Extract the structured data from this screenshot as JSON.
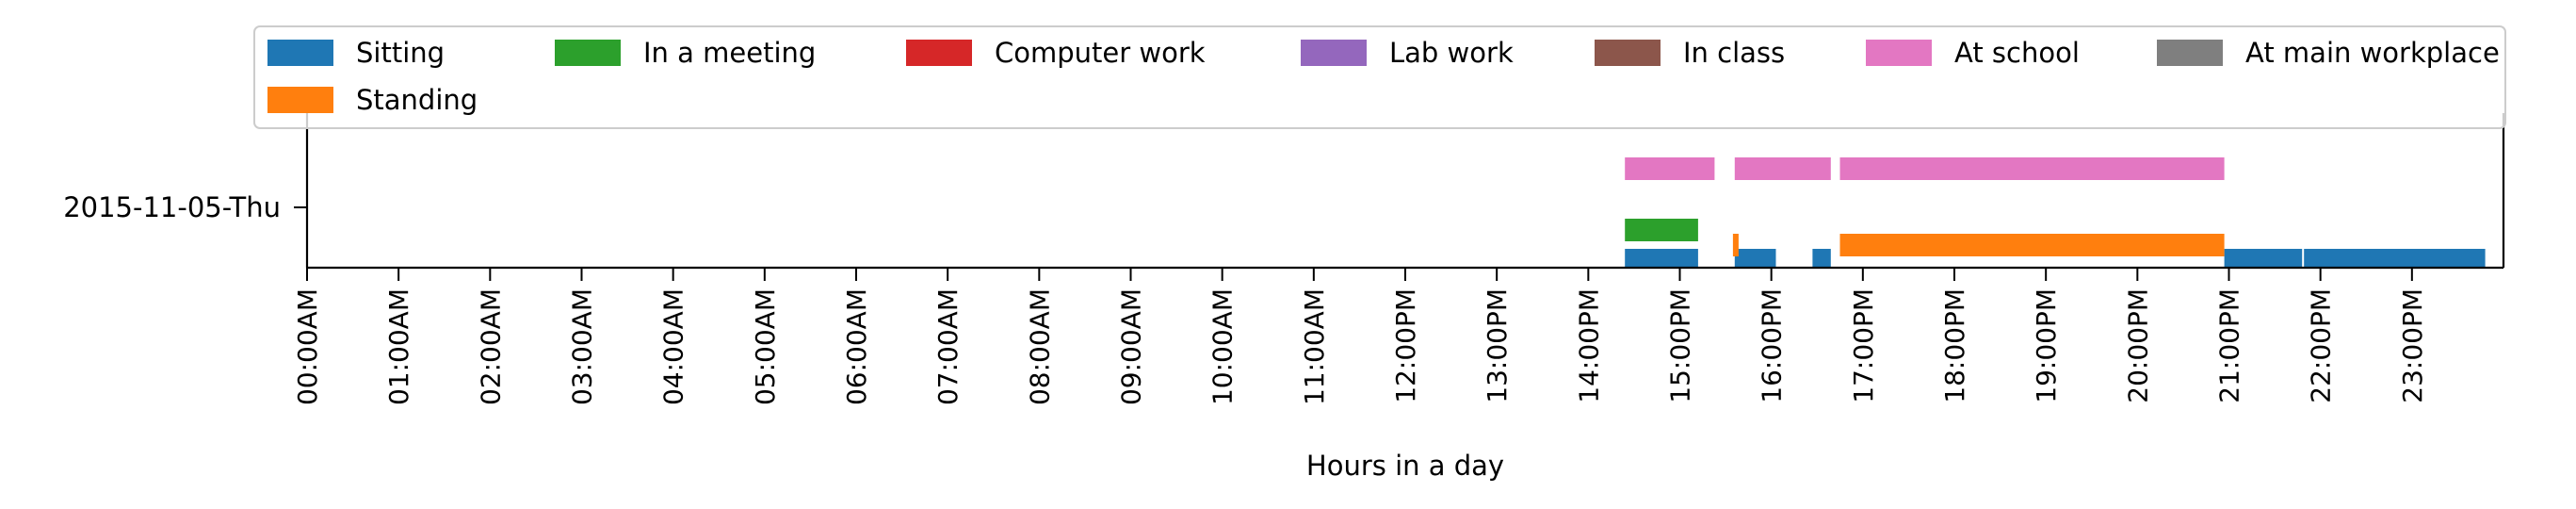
{
  "chart_data": {
    "type": "timeline",
    "title": "",
    "xlabel": "Hours in a day",
    "ylabel": "",
    "xlim": [
      0,
      24
    ],
    "y_categories": [
      "2015-11-05-Thu"
    ],
    "x_tick_labels": [
      "00:00AM",
      "01:00AM",
      "02:00AM",
      "03:00AM",
      "04:00AM",
      "05:00AM",
      "06:00AM",
      "07:00AM",
      "08:00AM",
      "09:00AM",
      "10:00AM",
      "11:00AM",
      "12:00PM",
      "13:00PM",
      "14:00PM",
      "15:00PM",
      "16:00PM",
      "17:00PM",
      "18:00PM",
      "19:00PM",
      "20:00PM",
      "21:00PM",
      "22:00PM",
      "23:00PM"
    ],
    "legend_position": "top",
    "grid": false,
    "series": [
      {
        "name": "Sitting",
        "color": "#1f77b4",
        "intervals": [
          [
            14.4,
            15.2
          ],
          [
            15.6,
            16.05
          ],
          [
            16.45,
            16.65
          ],
          [
            20.95,
            21.8
          ],
          [
            21.82,
            23.8
          ]
        ]
      },
      {
        "name": "In a meeting",
        "color": "#2ca02c",
        "intervals": [
          [
            14.4,
            15.2
          ]
        ]
      },
      {
        "name": "Computer work",
        "color": "#d62728",
        "intervals": []
      },
      {
        "name": "Lab work",
        "color": "#9467bd",
        "intervals": []
      },
      {
        "name": "In class",
        "color": "#8c564b",
        "intervals": []
      },
      {
        "name": "At school",
        "color": "#e377c2",
        "intervals": [
          [
            14.4,
            15.38
          ],
          [
            15.6,
            16.65
          ],
          [
            16.75,
            20.95
          ]
        ]
      },
      {
        "name": "At main workplace",
        "color": "#7f7f7f",
        "intervals": []
      },
      {
        "name": "Standing",
        "color": "#ff7f0e",
        "intervals": [
          [
            15.58,
            15.62
          ],
          [
            16.75,
            20.95
          ]
        ]
      }
    ]
  }
}
